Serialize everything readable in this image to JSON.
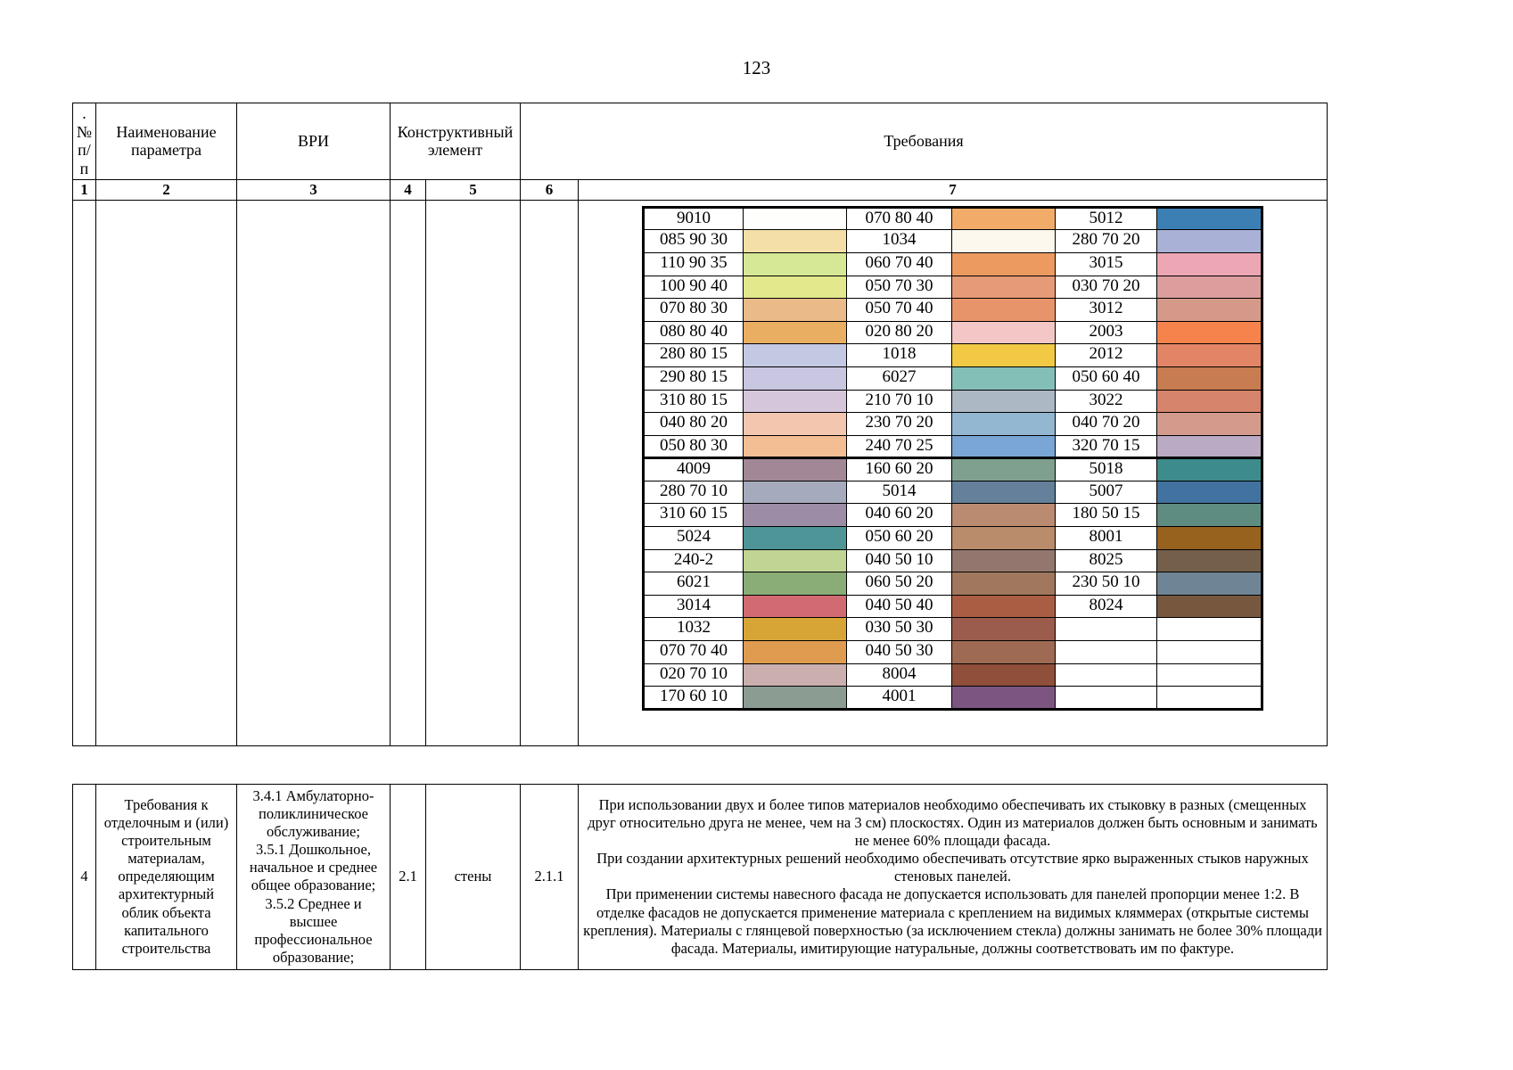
{
  "page_number": "123",
  "table1": {
    "header": {
      "num": ".№ п/п",
      "param": "Наименование параметра",
      "vri": "ВРИ",
      "element": "Конструктивный элемент",
      "requirements": "Требования"
    },
    "column_numbers": [
      "1",
      "2",
      "3",
      "4",
      "5",
      "6",
      "7"
    ]
  },
  "color_table": {
    "group1": [
      [
        {
          "code": "9010",
          "color": "#FEFEFC"
        },
        {
          "code": "070 80 40",
          "color": "#F1AC6A"
        },
        {
          "code": "5012",
          "color": "#3B7FB5"
        }
      ],
      [
        {
          "code": "085 90 30",
          "color": "#F4E0A6"
        },
        {
          "code": "1034",
          "color": "#FCF8EE"
        },
        {
          "code": "280 70 20",
          "color": "#A9B2D6"
        }
      ],
      [
        {
          "code": "110 90 35",
          "color": "#D6E795"
        },
        {
          "code": "060 70 40",
          "color": "#EC9A60"
        },
        {
          "code": "3015",
          "color": "#EDA6B4"
        }
      ],
      [
        {
          "code": "100 90 40",
          "color": "#E3E88C"
        },
        {
          "code": "050 70 30",
          "color": "#E79A77"
        },
        {
          "code": "030 70 20",
          "color": "#DB9E9D"
        }
      ],
      [
        {
          "code": "070 80 30",
          "color": "#EABB88"
        },
        {
          "code": "050 70 40",
          "color": "#E8946B"
        },
        {
          "code": "3012",
          "color": "#D5998A"
        }
      ],
      [
        {
          "code": "080 80 40",
          "color": "#EAAE62"
        },
        {
          "code": "020 80 20",
          "color": "#F2C7C5"
        },
        {
          "code": "2003",
          "color": "#F5834B"
        }
      ],
      [
        {
          "code": "280 80 15",
          "color": "#C4C9E3"
        },
        {
          "code": "1018",
          "color": "#F1C944"
        },
        {
          "code": "2012",
          "color": "#E28566"
        }
      ],
      [
        {
          "code": "290 80 15",
          "color": "#C9C6E1"
        },
        {
          "code": "6027",
          "color": "#83BFB7"
        },
        {
          "code": "050 60 40",
          "color": "#C87C51"
        }
      ],
      [
        {
          "code": "310 80 15",
          "color": "#D5C6DB"
        },
        {
          "code": "210 70 10",
          "color": "#ACB8C3"
        },
        {
          "code": "3022",
          "color": "#D6846B"
        }
      ],
      [
        {
          "code": "040 80 20",
          "color": "#F2C6AF"
        },
        {
          "code": "230 70 20",
          "color": "#93B6D1"
        },
        {
          "code": "040 70 20",
          "color": "#D49B8D"
        }
      ],
      [
        {
          "code": "050 80 30",
          "color": "#F3BE94"
        },
        {
          "code": "240 70 25",
          "color": "#7AA6D5"
        },
        {
          "code": "320 70 15",
          "color": "#BBAAC3"
        }
      ]
    ],
    "group2": [
      [
        {
          "code": "4009",
          "color": "#A28796"
        },
        {
          "code": "160 60 20",
          "color": "#80A08F"
        },
        {
          "code": "5018",
          "color": "#3E8B8B"
        }
      ],
      [
        {
          "code": "280 70 10",
          "color": "#A5AABD"
        },
        {
          "code": "5014",
          "color": "#64809B"
        },
        {
          "code": "5007",
          "color": "#42729F"
        }
      ],
      [
        {
          "code": "310 60 15",
          "color": "#9D8CA5"
        },
        {
          "code": "040 60 20",
          "color": "#BA8B71"
        },
        {
          "code": "180 50 15",
          "color": "#5E8C80"
        }
      ],
      [
        {
          "code": "5024",
          "color": "#4E9598"
        },
        {
          "code": "050 60 20",
          "color": "#B98C6C"
        },
        {
          "code": "8001",
          "color": "#96621E"
        }
      ],
      [
        {
          "code": "240-2",
          "color": "#C0D593"
        },
        {
          "code": "040 50 10",
          "color": "#93776E"
        },
        {
          "code": "8025",
          "color": "#745F4B"
        }
      ],
      [
        {
          "code": "6021",
          "color": "#8AAD77"
        },
        {
          "code": "060 50 20",
          "color": "#A1785E"
        },
        {
          "code": "230 50 10",
          "color": "#6F8494"
        }
      ],
      [
        {
          "code": "3014",
          "color": "#D26A71"
        },
        {
          "code": "040 50 40",
          "color": "#A95E43"
        },
        {
          "code": "8024",
          "color": "#78573F"
        }
      ],
      [
        {
          "code": "1032",
          "color": "#D7A536"
        },
        {
          "code": "030 50 30",
          "color": "#9B5C4E"
        },
        {
          "code": "",
          "color": ""
        }
      ],
      [
        {
          "code": "070 70 40",
          "color": "#DF9B50"
        },
        {
          "code": "040 50 30",
          "color": "#9F6A53"
        },
        {
          "code": "",
          "color": ""
        }
      ],
      [
        {
          "code": "020 70 10",
          "color": "#CAAFAE"
        },
        {
          "code": "8004",
          "color": "#8F4F3A"
        },
        {
          "code": "",
          "color": ""
        }
      ],
      [
        {
          "code": "170 60 10",
          "color": "#8B9C93"
        },
        {
          "code": "4001",
          "color": "#7C5680"
        },
        {
          "code": "",
          "color": ""
        }
      ]
    ]
  },
  "table2": {
    "num": "4",
    "param": "Требования к отделочным и (или) строительным материалам, определяющим архитектурный облик объекта капитального строительства",
    "vri": "3.4.1 Амбулаторно-поликлиническое обслуживание;\n3.5.1 Дошкольное, начальное и среднее общее образование;\n3.5.2 Среднее и высшее профессиональное образование;",
    "element_code": "2.1",
    "element_name": "стены",
    "requirement_code": "2.1.1",
    "requirements": "При использовании двух и более типов материалов необходимо обеспечивать их стыковку в разных (смещенных друг относительно друга не менее, чем на 3 см) плоскостях. Один из материалов должен быть основным и занимать не менее 60% площади фасада.\nПри создании архитектурных решений необходимо обеспечивать отсутствие ярко выраженных стыков наружных стеновых панелей.\nПри применении системы навесного фасада не допускается использовать для панелей пропорции менее 1:2. В отделке фасадов не допускается применение материала с креплением на видимых кляммерах (открытые системы крепления). Материалы с глянцевой поверхностью (за исключением стекла) должны занимать не более 30% площади фасада. Материалы, имитирующие натуральные, должны соответствовать им по фактуре."
  }
}
